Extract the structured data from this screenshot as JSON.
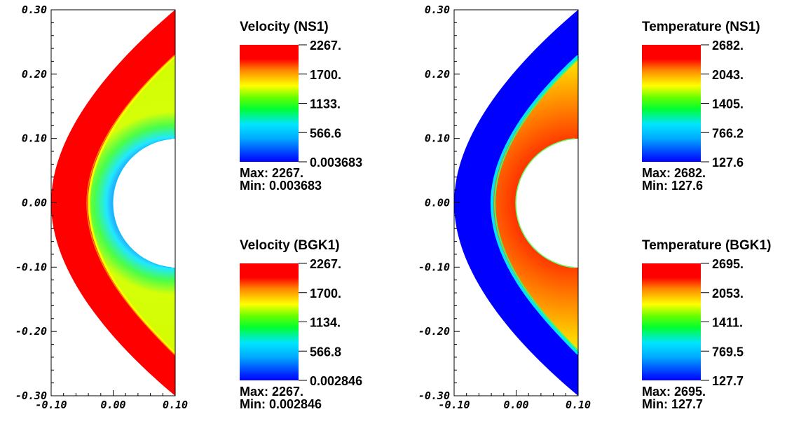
{
  "chart_data": [
    {
      "type": "heatmap",
      "panel": "velocity",
      "xlim": [
        -0.1,
        0.1
      ],
      "ylim": [
        -0.3,
        0.3
      ],
      "x_ticks": [
        "-0.10",
        "0.00",
        "0.10"
      ],
      "y_ticks": [
        "0.30",
        "0.20",
        "0.10",
        "0.00",
        "-0.10",
        "-0.20",
        "-0.30"
      ],
      "colorbars": [
        {
          "title": "Velocity (NS1)",
          "ticks": [
            "2267.",
            "1700.",
            "1133.",
            "566.6",
            "0.003683"
          ],
          "max_label": "Max:  2267.",
          "min_label": "Min:  0.003683",
          "max": 2267,
          "min": 0.003683
        },
        {
          "title": "Velocity (BGK1)",
          "ticks": [
            "2267.",
            "1700.",
            "1134.",
            "566.8",
            "0.002846"
          ],
          "max_label": "Max:  2267.",
          "min_label": "Min:  0.002846",
          "max": 2267,
          "min": 0.002846
        }
      ]
    },
    {
      "type": "heatmap",
      "panel": "temperature",
      "xlim": [
        -0.1,
        0.1
      ],
      "ylim": [
        -0.3,
        0.3
      ],
      "x_ticks": [
        "-0.10",
        "0.00",
        "0.10"
      ],
      "y_ticks": [
        "0.30",
        "0.20",
        "0.10",
        "0.00",
        "-0.10",
        "-0.20",
        "-0.30"
      ],
      "colorbars": [
        {
          "title": "Temperature (NS1)",
          "ticks": [
            "2682.",
            "2043.",
            "1405.",
            "766.2",
            "127.6"
          ],
          "max_label": "Max:  2682.",
          "min_label": "Min:  127.6",
          "max": 2682,
          "min": 127.6
        },
        {
          "title": "Temperature (BGK1)",
          "ticks": [
            "2695.",
            "2053.",
            "1411.",
            "769.5",
            "127.7"
          ],
          "max_label": "Max:  2695.",
          "min_label": "Min:  127.7",
          "max": 2695,
          "min": 127.7
        }
      ]
    }
  ],
  "colormap": [
    "#0000ff",
    "#00e5ff",
    "#00ff00",
    "#ffff00",
    "#ff0000"
  ]
}
